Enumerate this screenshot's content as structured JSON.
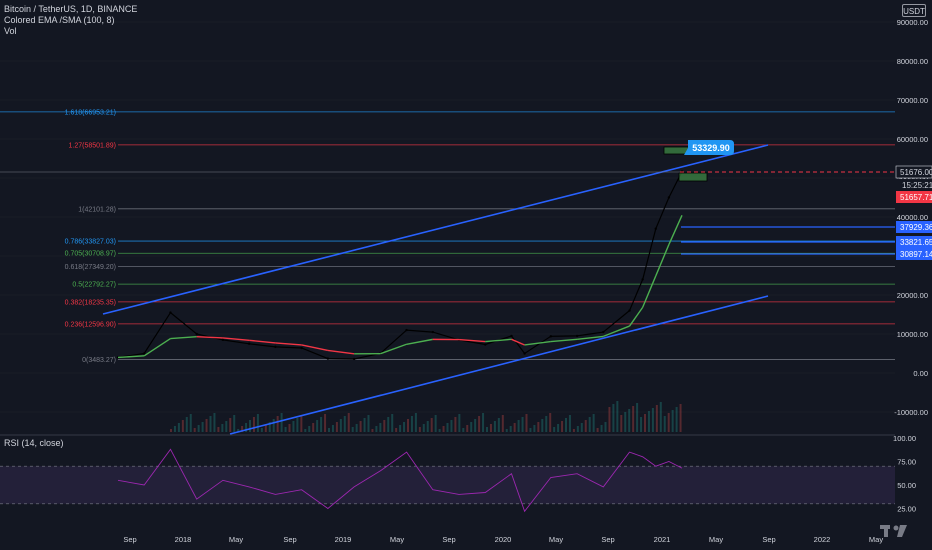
{
  "header": {
    "symbol_line": "Bitcoin / TetherUS, 1D, BINANCE",
    "indicator_line": "Colored EMA /SMA (100, 8)",
    "volume_label": "Vol",
    "currency": "USDT"
  },
  "price_axis": {
    "ticks": [
      "90000.00",
      "80000.00",
      "70000.00",
      "60000.00",
      "50000.00",
      "40000.00",
      "30000.00",
      "20000.00",
      "10000.00",
      "0.00",
      "-10000.00"
    ]
  },
  "price_badges": {
    "last_price": "51676.00",
    "countdown": "15:25:21",
    "current": "51657.71",
    "level_1": "37929.36",
    "level_2": "33821.65",
    "level_3": "30897.14"
  },
  "callout": "53329.90",
  "fib_levels": [
    {
      "label": "1.618(66953.21)",
      "value": 66953.21,
      "color": "#2196f3"
    },
    {
      "label": "1.27(58501.89)",
      "value": 58501.89,
      "color": "#f23645"
    },
    {
      "label": "1(42101.28)",
      "value": 42101.28,
      "color": "#787b86"
    },
    {
      "label": "0.786(33827.03)",
      "value": 33827.03,
      "color": "#2196f3"
    },
    {
      "label": "0.705(30708.97)",
      "value": 30708.97,
      "color": "#4caf50"
    },
    {
      "label": "0.618(27349.20)",
      "value": 27349.2,
      "color": "#787b86"
    },
    {
      "label": "0.5(22792.27)",
      "value": 22792.27,
      "color": "#4caf50"
    },
    {
      "label": "0.382(18235.35)",
      "value": 18235.35,
      "color": "#f23645"
    },
    {
      "label": "0.236(12596.90)",
      "value": 12596.9,
      "color": "#f23645"
    },
    {
      "label": "0(3483.27)",
      "value": 3483.27,
      "color": "#787b86"
    }
  ],
  "rsi": {
    "label": "RSI (14, close)",
    "ticks": [
      "100.00",
      "75.00",
      "50.00",
      "25.00"
    ]
  },
  "time_axis": {
    "labels": [
      "Sep",
      "2018",
      "May",
      "Sep",
      "2019",
      "May",
      "Sep",
      "2020",
      "May",
      "Sep",
      "2021",
      "May",
      "Sep",
      "2022",
      "May"
    ]
  },
  "chart_data": {
    "type": "line",
    "title": "Bitcoin / TetherUS, 1D, BINANCE",
    "xlabel": "",
    "ylabel": "",
    "ylim": [
      -10000,
      90000
    ],
    "x": [
      "2017-08",
      "2017-10",
      "2017-12",
      "2018-02",
      "2018-04",
      "2018-06",
      "2018-08",
      "2018-10",
      "2018-12",
      "2019-02",
      "2019-04",
      "2019-06",
      "2019-08",
      "2019-10",
      "2019-12",
      "2020-02",
      "2020-03",
      "2020-05",
      "2020-07",
      "2020-09",
      "2020-11",
      "2020-12",
      "2021-01",
      "2021-02",
      "2021-03"
    ],
    "series": [
      {
        "values": [
          4000,
          5000,
          15500,
          10000,
          8500,
          7500,
          6700,
          6400,
          3700,
          3600,
          5000,
          11000,
          10500,
          8500,
          7300,
          9500,
          5000,
          9400,
          9500,
          10500,
          16000,
          24000,
          37000,
          45000,
          51657.71
        ]
      }
    ],
    "rsi_values": [
      55,
      50,
      88,
      35,
      55,
      48,
      40,
      45,
      25,
      48,
      65,
      85,
      45,
      40,
      42,
      62,
      22,
      58,
      62,
      48,
      85,
      80,
      70,
      75,
      68
    ],
    "rsi_ylim": [
      0,
      100
    ],
    "rsi_guides": [
      70,
      30
    ]
  },
  "colors": {
    "background": "#131722",
    "channel": "#2962ff",
    "ema_up": "#4caf50",
    "ema_down": "#f23645",
    "rsi_line": "#9c27b0",
    "badge_blue": "#2962ff",
    "badge_red": "#f23645"
  }
}
